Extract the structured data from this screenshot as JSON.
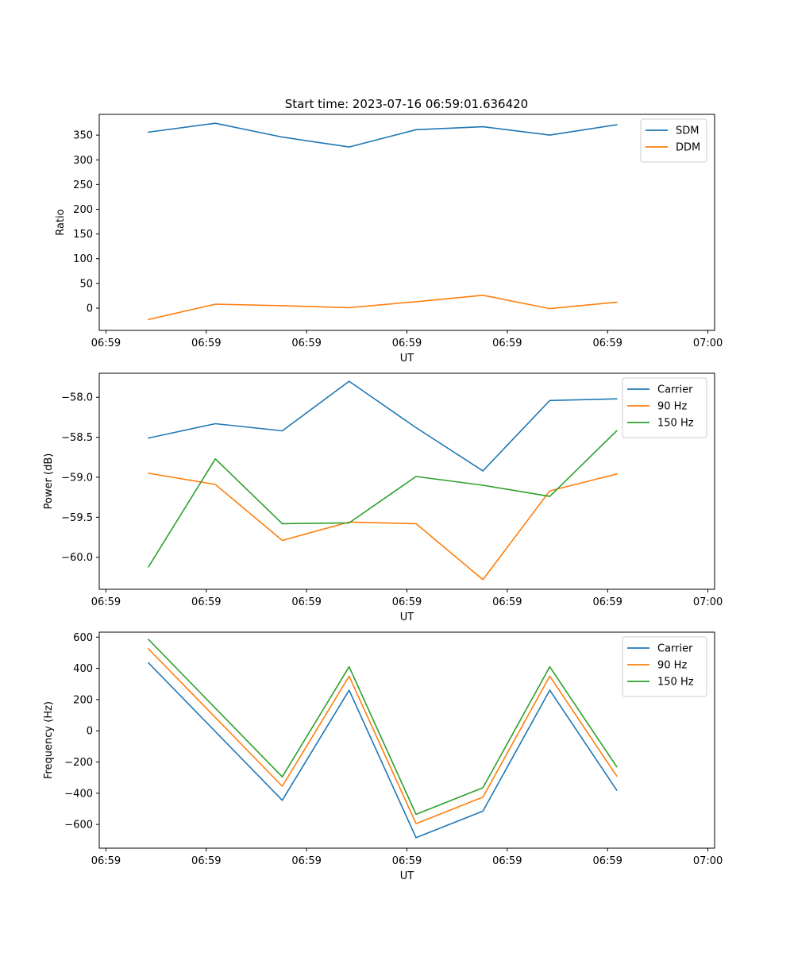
{
  "figure_title": "Start time: 2023-07-16 06:59:01.636420",
  "colors": {
    "blue": "#1f77b4",
    "orange": "#ff7f0e",
    "green": "#2ca02c",
    "axis": "#000000",
    "legend_border": "#cccccc"
  },
  "chart_data": [
    {
      "type": "line",
      "title": "Start time: 2023-07-16 06:59:01.636420",
      "xlabel": "UT",
      "ylabel": "Ratio",
      "x_seconds": [
        1.636,
        2.636,
        3.636,
        4.636,
        5.636,
        6.636,
        7.636,
        8.636
      ],
      "xlim": [
        0.9,
        10.1
      ],
      "xticks": [
        1,
        2.5,
        4,
        5.5,
        7,
        8.5,
        10
      ],
      "xtick_labels": [
        "06:59",
        "06:59",
        "06:59",
        "06:59",
        "06:59",
        "06:59",
        "07:00"
      ],
      "ylim": [
        -45,
        392
      ],
      "yticks": [
        0,
        50,
        100,
        150,
        200,
        250,
        300,
        350
      ],
      "ytick_labels": [
        "0",
        "50",
        "100",
        "150",
        "200",
        "250",
        "300",
        "350"
      ],
      "legend": "top-right",
      "series": [
        {
          "name": "SDM",
          "color": "#1f77b4",
          "values": [
            356,
            374,
            346,
            326,
            361,
            367,
            350,
            371
          ]
        },
        {
          "name": "DDM",
          "color": "#ff7f0e",
          "values": [
            -23,
            8,
            5,
            1,
            13,
            26,
            -1,
            12
          ]
        }
      ]
    },
    {
      "type": "line",
      "xlabel": "UT",
      "ylabel": "Power (dB)",
      "x_seconds": [
        1.636,
        2.636,
        3.636,
        4.636,
        5.636,
        6.636,
        7.636,
        8.636
      ],
      "xlim": [
        0.9,
        10.1
      ],
      "xticks": [
        1,
        2.5,
        4,
        5.5,
        7,
        8.5,
        10
      ],
      "xtick_labels": [
        "06:59",
        "06:59",
        "06:59",
        "06:59",
        "06:59",
        "06:59",
        "07:00"
      ],
      "ylim": [
        -60.4,
        -57.7
      ],
      "yticks": [
        -60,
        -59.5,
        -59,
        -58.5,
        -58
      ],
      "ytick_labels": [
        "−60.0",
        "−59.5",
        "−59.0",
        "−58.5",
        "−58.0"
      ],
      "legend": "top-right",
      "series": [
        {
          "name": "Carrier",
          "color": "#1f77b4",
          "values": [
            -58.51,
            -58.33,
            -58.42,
            -57.8,
            -58.38,
            -58.92,
            -58.04,
            -58.02
          ]
        },
        {
          "name": "90 Hz",
          "color": "#ff7f0e",
          "values": [
            -58.95,
            -59.09,
            -59.79,
            -59.56,
            -59.58,
            -60.28,
            -59.17,
            -58.96
          ]
        },
        {
          "name": "150 Hz",
          "color": "#2ca02c",
          "values": [
            -60.12,
            -58.77,
            -59.58,
            -59.57,
            -58.99,
            -59.1,
            -59.24,
            -58.42
          ]
        }
      ]
    },
    {
      "type": "line",
      "xlabel": "UT",
      "ylabel": "Frequency (Hz)",
      "x_seconds": [
        1.636,
        3.636,
        4.636,
        5.636,
        6.636,
        7.636,
        8.636
      ],
      "xlim": [
        0.9,
        10.1
      ],
      "xticks": [
        1,
        2.5,
        4,
        5.5,
        7,
        8.5,
        10
      ],
      "xtick_labels": [
        "06:59",
        "06:59",
        "06:59",
        "06:59",
        "06:59",
        "06:59",
        "07:00"
      ],
      "ylim": [
        -752,
        632
      ],
      "yticks": [
        -600,
        -400,
        -200,
        0,
        200,
        400,
        600
      ],
      "ytick_labels": [
        "−600",
        "−400",
        "−200",
        "0",
        "200",
        "400",
        "600"
      ],
      "legend": "top-right",
      "series": [
        {
          "name": "Carrier",
          "color": "#1f77b4",
          "values": [
            435,
            -445,
            260,
            -685,
            -515,
            260,
            -380
          ]
        },
        {
          "name": "90 Hz",
          "color": "#ff7f0e",
          "values": [
            525,
            -355,
            350,
            -595,
            -425,
            350,
            -290
          ]
        },
        {
          "name": "150 Hz",
          "color": "#2ca02c",
          "values": [
            585,
            -295,
            410,
            -535,
            -365,
            410,
            -230
          ]
        }
      ]
    }
  ]
}
